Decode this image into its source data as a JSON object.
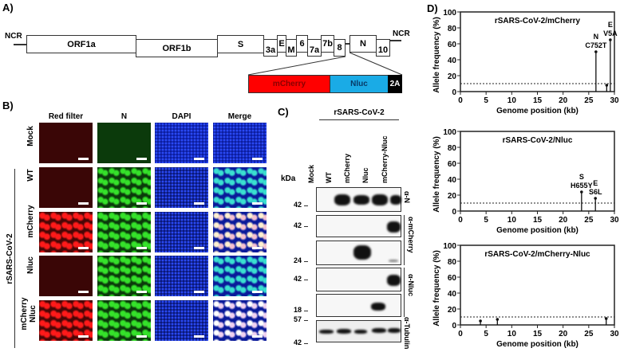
{
  "panels": {
    "A": "A)",
    "B": "B)",
    "C": "C)",
    "D": "D)"
  },
  "genome": {
    "ncr_left": "NCR",
    "ncr_right": "NCR",
    "genes": [
      "ORF1a",
      "ORF1b",
      "S",
      "3a",
      "E",
      "M",
      "6",
      "7a",
      "7b",
      "8",
      "N",
      "10"
    ],
    "cassette": [
      {
        "label": "mCherry",
        "color": "#ff0000"
      },
      {
        "label": "Nluc",
        "color": "#1aabe6"
      },
      {
        "label": "2A",
        "color": "#000000"
      }
    ]
  },
  "microscopy": {
    "columns": [
      "Red filter",
      "N",
      "DAPI",
      "Merge"
    ],
    "rows": [
      "Mock",
      "WT",
      "mCherry",
      "Nluc",
      "mCherry Nluc"
    ],
    "group_label": "rSARS-CoV-2",
    "colors": {
      "red": "#ff1a1a",
      "red_bg": "#3a0606",
      "green": "#35e22a",
      "green_bg": "#0b3a0b",
      "blue": "#1c3cf0",
      "blue_bg": "#071060"
    }
  },
  "western": {
    "group_label": "rSARS-CoV-2",
    "kda_label": "kDa",
    "lanes": [
      "Mock",
      "WT",
      "mCherry",
      "Nluc",
      "mCherry-Nluc"
    ],
    "blots": [
      {
        "antibody": "α-N",
        "markers": [
          "42"
        ]
      },
      {
        "antibody": "α-mCherry",
        "markers": [
          "42"
        ]
      },
      {
        "antibody": "",
        "markers": [
          "24"
        ]
      },
      {
        "antibody": "α-Nluc",
        "markers": [
          "42"
        ]
      },
      {
        "antibody": "",
        "markers": [
          "18"
        ]
      },
      {
        "antibody": "α-Tubulin",
        "markers": [
          "57",
          "42"
        ]
      }
    ],
    "antibody_labels": {
      "n": "α-N",
      "mcherry": "α-mCherry",
      "nluc": "α-Nluc",
      "tubulin": "α-Tubulin"
    }
  },
  "chart_data": [
    {
      "type": "scatter",
      "title": "rSARS-CoV-2/mCherry",
      "xlabel": "Genome position (kb)",
      "ylabel": "Allele frequency (%)",
      "xlim": [
        0,
        30
      ],
      "ylim": [
        0,
        100
      ],
      "xticks": [
        0,
        5,
        10,
        15,
        20,
        25,
        30
      ],
      "yticks": [
        0,
        20,
        40,
        60,
        80,
        100
      ],
      "threshold": 10,
      "points": [
        {
          "x": 26.4,
          "y": 50,
          "label": "N C752T"
        },
        {
          "x": 28.5,
          "y": 8,
          "label": ""
        },
        {
          "x": 29.2,
          "y": 65,
          "label": "E V5A"
        }
      ]
    },
    {
      "type": "scatter",
      "title": "rSARS-CoV-2/Nluc",
      "xlabel": "Genome position (kb)",
      "ylabel": "Allele frequency (%)",
      "xlim": [
        0,
        30
      ],
      "ylim": [
        0,
        100
      ],
      "xticks": [
        0,
        5,
        10,
        15,
        20,
        25,
        30
      ],
      "yticks": [
        0,
        20,
        40,
        60,
        80,
        100
      ],
      "threshold": 10,
      "points": [
        {
          "x": 23.6,
          "y": 24,
          "label": "S H655Y"
        },
        {
          "x": 26.3,
          "y": 16,
          "label": "E S6L"
        }
      ]
    },
    {
      "type": "scatter",
      "title": "rSARS-CoV-2/mCherry-Nluc",
      "xlabel": "Genome position (kb)",
      "ylabel": "Allele frequency (%)",
      "xlim": [
        0,
        30
      ],
      "ylim": [
        0,
        100
      ],
      "xticks": [
        0,
        5,
        10,
        15,
        20,
        25,
        30
      ],
      "yticks": [
        0,
        20,
        40,
        60,
        80,
        100
      ],
      "threshold": 10,
      "points": [
        {
          "x": 3.9,
          "y": 5,
          "label": ""
        },
        {
          "x": 7.2,
          "y": 7,
          "label": ""
        },
        {
          "x": 28.4,
          "y": 8,
          "label": ""
        }
      ]
    }
  ]
}
